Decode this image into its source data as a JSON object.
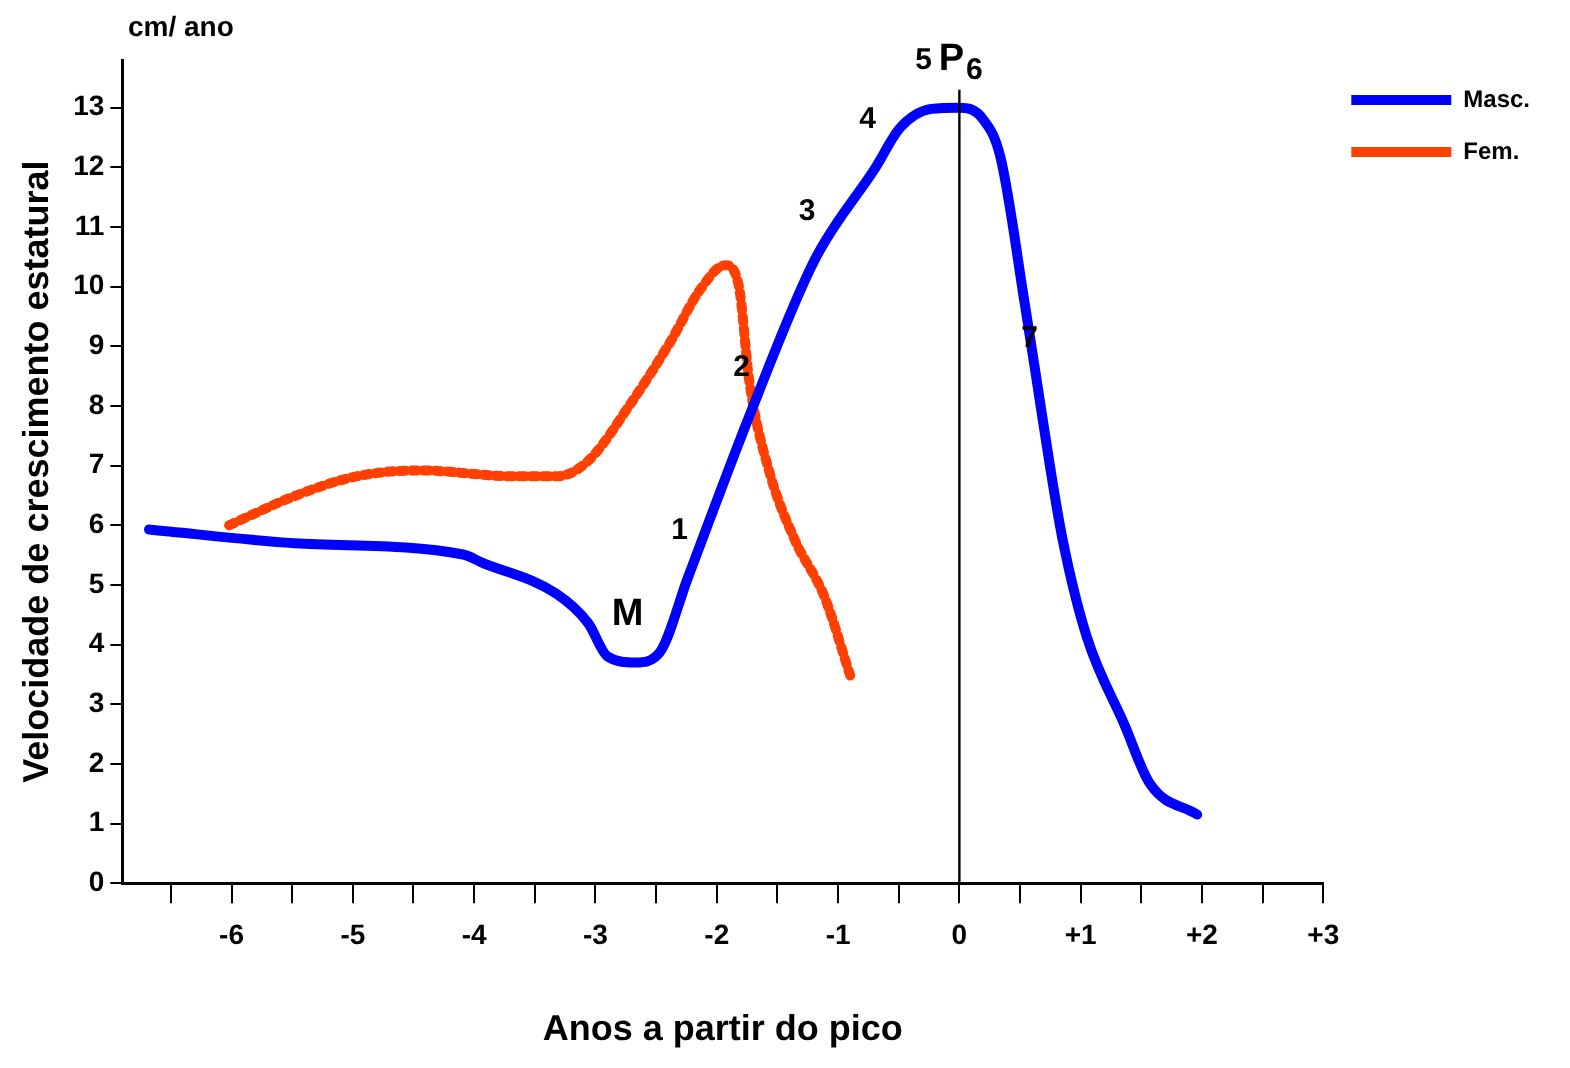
{
  "chart_data": {
    "type": "line",
    "xlabel": "Anos a partir do pico",
    "ylabel": "Velocidade de crescimento estatural",
    "annotations": [
      "cm/ ano",
      {
        "text": "1",
        "x": -2.24,
        "y": 5.11
      },
      {
        "text": "2",
        "x": -1.73,
        "y": 7.84
      },
      {
        "text": "3",
        "x": -1.19,
        "y": 10.46
      },
      {
        "text": "4",
        "x": -0.69,
        "y": 12.0
      },
      {
        "text": "5",
        "x": -0.23,
        "y": 12.98
      },
      {
        "text": "P",
        "x": 0,
        "y": 13.0
      },
      {
        "text": "6",
        "x": 0.19,
        "y": 12.82
      },
      {
        "text": "7",
        "x": 0.645,
        "y": 8.33
      },
      {
        "text": "M",
        "x": -2.67,
        "y": 3.7
      }
    ],
    "xlim": [
      -6.9,
      3
    ],
    "ylim": [
      0,
      13.8
    ],
    "xticks": [
      {
        "value": -6.5,
        "label": null
      },
      -6,
      {
        "value": -5.5,
        "label": null
      },
      -5,
      {
        "value": -4.5,
        "label": null
      },
      -4,
      {
        "value": -3.5,
        "label": null
      },
      -3,
      {
        "value": -2.5,
        "label": null
      },
      -2,
      {
        "value": -1.5,
        "label": null
      },
      -1,
      {
        "value": -0.5,
        "label": null
      },
      0,
      {
        "value": 0.5,
        "label": null
      },
      {
        "value": 1,
        "label": "+1"
      },
      {
        "value": 1.5,
        "label": null
      },
      {
        "value": 2,
        "label": "+2"
      },
      {
        "value": 2.5,
        "label": null
      },
      {
        "value": 3,
        "label": "+3"
      }
    ],
    "yticks": [
      0,
      1,
      2,
      3,
      4,
      5,
      6,
      7,
      8,
      9,
      10,
      11,
      12,
      13
    ],
    "grid": false,
    "legend": "top right",
    "marker": "none",
    "ref_lines": [
      {
        "axis": "x",
        "value": 0,
        "label": null,
        "color": "#000000"
      }
    ],
    "series": [
      {
        "name": "Masc.",
        "color": "#0000ff",
        "line_style": "solid",
        "x": [
          -6.68,
          -5.48,
          -4.09,
          -3.94,
          -3.32,
          -3.06,
          -2.9,
          -2.67,
          -2.47,
          -2.24,
          -1.73,
          -1.19,
          -0.69,
          -0.49,
          -0.23,
          0,
          0.19,
          0.34,
          0.54,
          0.645,
          0.74,
          0.85,
          1.05,
          1.36,
          1.57,
          1.96
        ],
        "values": [
          5.93,
          5.7,
          5.51,
          5.38,
          4.85,
          4.36,
          3.8,
          3.7,
          3.87,
          5.11,
          7.84,
          10.46,
          12.0,
          12.66,
          12.98,
          13.0,
          12.82,
          12.16,
          9.7,
          8.33,
          7.08,
          5.77,
          4.13,
          2.66,
          1.67,
          1.15
        ]
      },
      {
        "name": "Fem.",
        "color": "#ff4000",
        "line_style": "dotted",
        "x": [
          -6.02,
          -5.48,
          -4.97,
          -4.44,
          -3.67,
          -3.32,
          -3.06,
          -2.7,
          -2.39,
          -2.13,
          -1.93,
          -1.82,
          -1.73,
          -1.57,
          -1.36,
          -1.11,
          -0.9
        ],
        "values": [
          6.0,
          6.49,
          6.82,
          6.92,
          6.82,
          6.82,
          7.08,
          8.07,
          9.05,
          9.97,
          10.36,
          10.03,
          8.39,
          6.92,
          5.77,
          4.79,
          3.48
        ]
      }
    ]
  }
}
